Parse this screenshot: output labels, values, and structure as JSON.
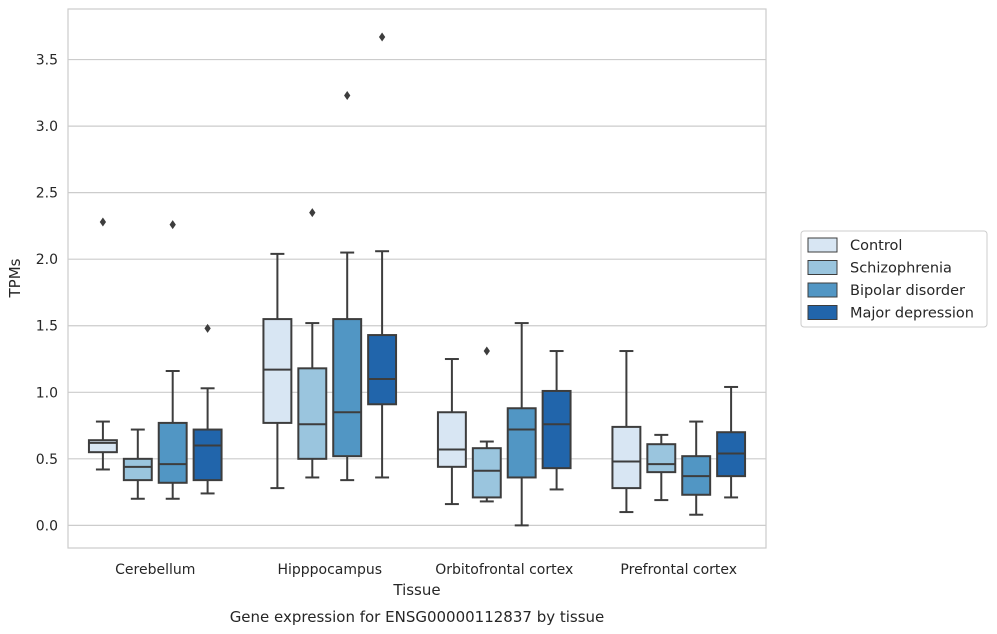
{
  "chart_data": {
    "type": "box",
    "title": "",
    "caption": "Gene expression for ENSG00000112837 by tissue",
    "xlabel": "Tissue",
    "ylabel": "TPMs",
    "ylim": [
      -0.17,
      3.88
    ],
    "yticks": [
      0.0,
      0.5,
      1.0,
      1.5,
      2.0,
      2.5,
      3.0,
      3.5
    ],
    "ytick_labels": [
      "0.0",
      "0.5",
      "1.0",
      "1.5",
      "2.0",
      "2.5",
      "3.0",
      "3.5"
    ],
    "grid": "horizontal",
    "legend_position": "outside-right",
    "categories": [
      "Cerebellum",
      "Hipppocampus",
      "Orbitofrontal cortex",
      "Prefrontal cortex"
    ],
    "series": [
      {
        "name": "Control",
        "color": "#d8e6f3",
        "boxes": [
          {
            "whisker_low": 0.42,
            "q1": 0.55,
            "median": 0.62,
            "q3": 0.64,
            "whisker_high": 0.78,
            "outliers": [
              2.28
            ]
          },
          {
            "whisker_low": 0.28,
            "q1": 0.77,
            "median": 1.17,
            "q3": 1.55,
            "whisker_high": 2.04,
            "outliers": []
          },
          {
            "whisker_low": 0.16,
            "q1": 0.44,
            "median": 0.57,
            "q3": 0.85,
            "whisker_high": 1.25,
            "outliers": []
          },
          {
            "whisker_low": 0.1,
            "q1": 0.28,
            "median": 0.48,
            "q3": 0.74,
            "whisker_high": 1.31,
            "outliers": []
          }
        ]
      },
      {
        "name": "Schizophrenia",
        "color": "#9ac5de",
        "boxes": [
          {
            "whisker_low": 0.2,
            "q1": 0.34,
            "median": 0.44,
            "q3": 0.5,
            "whisker_high": 0.72,
            "outliers": []
          },
          {
            "whisker_low": 0.36,
            "q1": 0.5,
            "median": 0.76,
            "q3": 1.18,
            "whisker_high": 1.52,
            "outliers": [
              2.35
            ]
          },
          {
            "whisker_low": 0.18,
            "q1": 0.21,
            "median": 0.41,
            "q3": 0.58,
            "whisker_high": 0.63,
            "outliers": [
              1.31
            ]
          },
          {
            "whisker_low": 0.19,
            "q1": 0.4,
            "median": 0.46,
            "q3": 0.61,
            "whisker_high": 0.68,
            "outliers": []
          }
        ]
      },
      {
        "name": "Bipolar disorder",
        "color": "#5196c4",
        "boxes": [
          {
            "whisker_low": 0.2,
            "q1": 0.32,
            "median": 0.46,
            "q3": 0.77,
            "whisker_high": 1.16,
            "outliers": [
              2.26
            ]
          },
          {
            "whisker_low": 0.34,
            "q1": 0.52,
            "median": 0.85,
            "q3": 1.55,
            "whisker_high": 2.05,
            "outliers": [
              3.23
            ]
          },
          {
            "whisker_low": 0.0,
            "q1": 0.36,
            "median": 0.72,
            "q3": 0.88,
            "whisker_high": 1.52,
            "outliers": []
          },
          {
            "whisker_low": 0.08,
            "q1": 0.23,
            "median": 0.37,
            "q3": 0.52,
            "whisker_high": 0.78,
            "outliers": []
          }
        ]
      },
      {
        "name": "Major depression",
        "color": "#2165ab",
        "boxes": [
          {
            "whisker_low": 0.24,
            "q1": 0.34,
            "median": 0.6,
            "q3": 0.72,
            "whisker_high": 1.03,
            "outliers": [
              1.48
            ]
          },
          {
            "whisker_low": 0.36,
            "q1": 0.91,
            "median": 1.1,
            "q3": 1.43,
            "whisker_high": 2.06,
            "outliers": [
              3.67
            ]
          },
          {
            "whisker_low": 0.27,
            "q1": 0.43,
            "median": 0.76,
            "q3": 1.01,
            "whisker_high": 1.31,
            "outliers": []
          },
          {
            "whisker_low": 0.21,
            "q1": 0.37,
            "median": 0.54,
            "q3": 0.7,
            "whisker_high": 1.04,
            "outliers": []
          }
        ]
      }
    ]
  }
}
